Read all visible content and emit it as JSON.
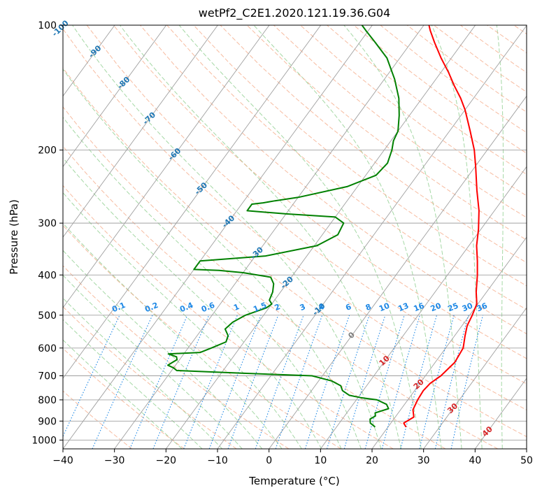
{
  "chart_data": {
    "type": "line",
    "title": "wetPf2_C2E1.2020.121.19.36.G04",
    "xlabel": "Temperature (°C)",
    "ylabel": "Pressure (hPa)",
    "xlim": [
      -40,
      50
    ],
    "ylim": [
      1050,
      100
    ],
    "y_scale": "log",
    "grid": true,
    "x_ticks": [
      "−40",
      "−30",
      "−20",
      "−10",
      "0",
      "10",
      "20",
      "30",
      "40",
      "50"
    ],
    "y_ticks": [
      "100",
      "200",
      "300",
      "400",
      "500",
      "600",
      "700",
      "800",
      "900",
      "1000"
    ],
    "colors": {
      "temperature": "#ff0000",
      "dewpoint": "#008000",
      "isotherm": "#a0a0a0",
      "dry_adiabat": "#f4a582",
      "moist_adiabat": "#8fce8f",
      "mixing_ratio": "#1e88e5",
      "isotherm_label": "#1f77b4",
      "positive_isotherm_label": "#d62728",
      "zero_label": "#808080"
    },
    "series": [
      {
        "key": "temperature",
        "points": [
          {
            "p": 930,
            "t": 23.5
          },
          {
            "p": 910,
            "t": 22.5
          },
          {
            "p": 880,
            "t": 23.6
          },
          {
            "p": 845,
            "t": 22.4
          },
          {
            "p": 800,
            "t": 21.9
          },
          {
            "p": 760,
            "t": 21.7
          },
          {
            "p": 730,
            "t": 22.0
          },
          {
            "p": 700,
            "t": 23.0
          },
          {
            "p": 650,
            "t": 23.8
          },
          {
            "p": 600,
            "t": 23.4
          },
          {
            "p": 560,
            "t": 22.0
          },
          {
            "p": 530,
            "t": 21.0
          },
          {
            "p": 500,
            "t": 20.5
          },
          {
            "p": 470,
            "t": 19.8
          },
          {
            "p": 440,
            "t": 18.0
          },
          {
            "p": 400,
            "t": 15.8
          },
          {
            "p": 370,
            "t": 13.8
          },
          {
            "p": 340,
            "t": 11.5
          },
          {
            "p": 310,
            "t": 9.5
          },
          {
            "p": 280,
            "t": 7.0
          },
          {
            "p": 250,
            "t": 3.7
          },
          {
            "p": 220,
            "t": 0.2
          },
          {
            "p": 200,
            "t": -2.5
          },
          {
            "p": 180,
            "t": -6.0
          },
          {
            "p": 160,
            "t": -10.0
          },
          {
            "p": 150,
            "t": -12.5
          },
          {
            "p": 140,
            "t": -15.5
          },
          {
            "p": 130,
            "t": -18.5
          },
          {
            "p": 120,
            "t": -22.0
          },
          {
            "p": 110,
            "t": -25.5
          },
          {
            "p": 103,
            "t": -28.0
          },
          {
            "p": 100,
            "t": -29.0
          }
        ]
      },
      {
        "key": "dewpoint",
        "points": [
          {
            "p": 930,
            "t": 17.5
          },
          {
            "p": 910,
            "t": 16.0
          },
          {
            "p": 890,
            "t": 15.4
          },
          {
            "p": 875,
            "t": 16.0
          },
          {
            "p": 860,
            "t": 15.5
          },
          {
            "p": 840,
            "t": 17.5
          },
          {
            "p": 820,
            "t": 16.5
          },
          {
            "p": 800,
            "t": 14.0
          },
          {
            "p": 790,
            "t": 10.5
          },
          {
            "p": 780,
            "t": 8.0
          },
          {
            "p": 760,
            "t": 6.0
          },
          {
            "p": 740,
            "t": 5.0
          },
          {
            "p": 720,
            "t": 2.5
          },
          {
            "p": 700,
            "t": -2.0
          },
          {
            "p": 690,
            "t": -16.0
          },
          {
            "p": 680,
            "t": -29.0
          },
          {
            "p": 670,
            "t": -30.0
          },
          {
            "p": 660,
            "t": -31.5
          },
          {
            "p": 650,
            "t": -31.0
          },
          {
            "p": 640,
            "t": -30.5
          },
          {
            "p": 630,
            "t": -31.0
          },
          {
            "p": 620,
            "t": -33.0
          },
          {
            "p": 615,
            "t": -27.0
          },
          {
            "p": 600,
            "t": -25.5
          },
          {
            "p": 580,
            "t": -23.5
          },
          {
            "p": 560,
            "t": -24.0
          },
          {
            "p": 540,
            "t": -25.5
          },
          {
            "p": 520,
            "t": -25.0
          },
          {
            "p": 500,
            "t": -23.5
          },
          {
            "p": 490,
            "t": -22.0
          },
          {
            "p": 480,
            "t": -20.5
          },
          {
            "p": 470,
            "t": -20.0
          },
          {
            "p": 460,
            "t": -21.0
          },
          {
            "p": 440,
            "t": -21.5
          },
          {
            "p": 420,
            "t": -22.5
          },
          {
            "p": 405,
            "t": -24.0
          },
          {
            "p": 395,
            "t": -30.0
          },
          {
            "p": 390,
            "t": -35.0
          },
          {
            "p": 388,
            "t": -40.0
          },
          {
            "p": 370,
            "t": -40.0
          },
          {
            "p": 360,
            "t": -28.0
          },
          {
            "p": 340,
            "t": -19.5
          },
          {
            "p": 320,
            "t": -17.0
          },
          {
            "p": 300,
            "t": -17.5
          },
          {
            "p": 290,
            "t": -20.0
          },
          {
            "p": 285,
            "t": -30.0
          },
          {
            "p": 280,
            "t": -38.0
          },
          {
            "p": 275,
            "t": -38.0
          },
          {
            "p": 270,
            "t": -38.0
          },
          {
            "p": 268,
            "t": -36.0
          },
          {
            "p": 265,
            "t": -34.0
          },
          {
            "p": 260,
            "t": -30.0
          },
          {
            "p": 245,
            "t": -22.0
          },
          {
            "p": 230,
            "t": -18.0
          },
          {
            "p": 215,
            "t": -17.5
          },
          {
            "p": 200,
            "t": -18.5
          },
          {
            "p": 190,
            "t": -19.5
          },
          {
            "p": 180,
            "t": -20.0
          },
          {
            "p": 165,
            "t": -22.0
          },
          {
            "p": 150,
            "t": -24.5
          },
          {
            "p": 135,
            "t": -28.0
          },
          {
            "p": 120,
            "t": -32.5
          },
          {
            "p": 110,
            "t": -37.0
          },
          {
            "p": 103,
            "t": -40.5
          },
          {
            "p": 100,
            "t": -42.0
          }
        ]
      }
    ],
    "isotherm_labels": [
      {
        "text": "-100",
        "t": -100,
        "p": 102
      },
      {
        "text": "-90",
        "t": -90,
        "p": 116
      },
      {
        "text": "-80",
        "t": -80,
        "p": 138
      },
      {
        "text": "-70",
        "t": -70,
        "p": 168
      },
      {
        "text": "-60",
        "t": -60,
        "p": 205
      },
      {
        "text": "-50",
        "t": -50,
        "p": 248
      },
      {
        "text": "-40",
        "t": -40,
        "p": 298
      },
      {
        "text": "-30",
        "t": -30,
        "p": 355
      },
      {
        "text": "-20",
        "t": -20,
        "p": 418
      },
      {
        "text": "-10",
        "t": -10,
        "p": 485
      },
      {
        "text": "0",
        "t": 0,
        "p": 560
      },
      {
        "text": "10",
        "t": 10,
        "p": 645
      },
      {
        "text": "20",
        "t": 20,
        "p": 735
      },
      {
        "text": "30",
        "t": 30,
        "p": 840
      },
      {
        "text": "40",
        "t": 40,
        "p": 955
      }
    ],
    "mixing_ratio_labels": [
      "0.1",
      "0.2",
      "0.4",
      "0.6",
      "1",
      "1.5",
      "2",
      "3",
      "4",
      "6",
      "8",
      "10",
      "13",
      "16",
      "20",
      "25",
      "30",
      "36"
    ],
    "mixing_ratio_values": [
      0.1,
      0.2,
      0.4,
      0.6,
      1,
      1.5,
      2,
      3,
      4,
      6,
      8,
      10,
      13,
      16,
      20,
      25,
      30,
      36
    ]
  }
}
